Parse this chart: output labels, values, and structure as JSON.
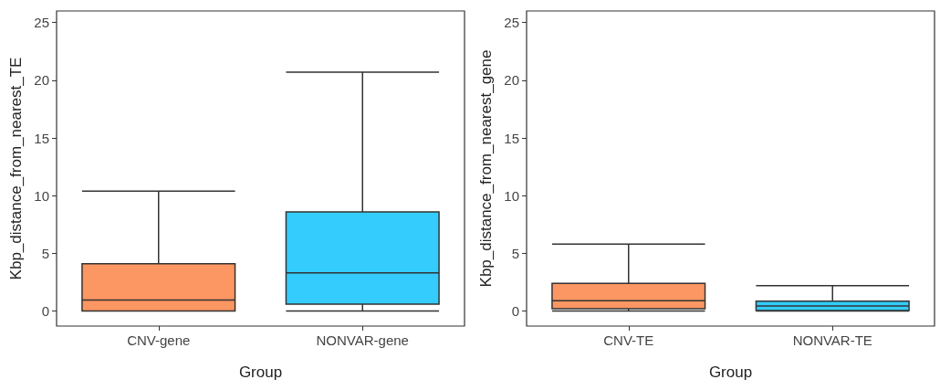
{
  "chart_data": [
    {
      "type": "box",
      "categories": [
        "CNV-gene",
        "NONVAR-gene"
      ],
      "colors": [
        "#fc9662",
        "#33ccfc"
      ],
      "xlabel": "Group",
      "ylabel": "Kbp_distance_from_nearest_TE",
      "ylim": [
        -1.3,
        26
      ],
      "yticks": [
        0,
        5,
        10,
        15,
        20,
        25
      ],
      "boxes": [
        {
          "low": 0,
          "q1": 0,
          "median": 0.95,
          "q3": 4.1,
          "high": 10.4
        },
        {
          "low": 0,
          "q1": 0.6,
          "median": 3.3,
          "q3": 8.6,
          "high": 20.7
        }
      ]
    },
    {
      "type": "box",
      "categories": [
        "CNV-TE",
        "NONVAR-TE"
      ],
      "colors": [
        "#fc9662",
        "#33ccfc"
      ],
      "xlabel": "Group",
      "ylabel": "Kbp_distance_from_nearest_gene",
      "ylim": [
        -1.3,
        26
      ],
      "yticks": [
        0,
        5,
        10,
        15,
        20,
        25
      ],
      "boxes": [
        {
          "low": 0,
          "q1": 0.2,
          "median": 0.9,
          "q3": 2.4,
          "high": 5.8
        },
        {
          "low": 0,
          "q1": 0.05,
          "median": 0.45,
          "q3": 0.85,
          "high": 2.2
        }
      ]
    }
  ]
}
